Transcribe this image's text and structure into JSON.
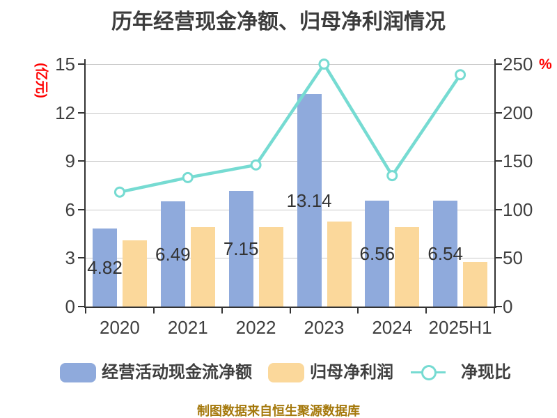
{
  "title": "历年经营现金净额、归母净利润情况",
  "footnote": "制图数据来自恒生聚源数据库",
  "axes": {
    "left": {
      "unit": "(亿元)",
      "ticks": [
        "15",
        "12",
        "9",
        "6",
        "3",
        "0"
      ]
    },
    "right": {
      "unit": "%",
      "ticks": [
        "250",
        "200",
        "150",
        "100",
        "50",
        "0"
      ]
    },
    "x": {
      "categories": [
        "2020",
        "2021",
        "2022",
        "2023",
        "2024",
        "2025H1"
      ]
    }
  },
  "legend": {
    "items": [
      {
        "label": "经营活动现金流净额",
        "type": "bar",
        "color": "#8faadc"
      },
      {
        "label": "归母净利润",
        "type": "bar",
        "color": "#fbd89b"
      },
      {
        "label": "净现比",
        "type": "line",
        "color": "#76dbd2"
      }
    ]
  },
  "colors": {
    "bar_cashflow": "#8faadc",
    "bar_netprofit": "#fbd89b",
    "line_ratio": "#76dbd2",
    "axis_text": "#3f3f3f",
    "red_accent": "#ff0000",
    "gridline": "#c8c8c8",
    "axis_line": "#333333",
    "bar_label": "#333333",
    "footnote_text": "#a5790c"
  },
  "chart_data": {
    "type": "combo-bar-line",
    "categories": [
      "2020",
      "2021",
      "2022",
      "2023",
      "2024",
      "2025H1"
    ],
    "series": [
      {
        "name": "经营活动现金流净额",
        "type": "bar",
        "axis": "left",
        "values": [
          4.82,
          6.49,
          7.15,
          13.14,
          6.56,
          6.54
        ],
        "labels": [
          "4.82",
          "6.49",
          "7.15",
          "13.14",
          "6.56",
          "6.54"
        ]
      },
      {
        "name": "归母净利润",
        "type": "bar",
        "axis": "left",
        "values": [
          4.1,
          4.9,
          4.9,
          5.26,
          4.9,
          2.75
        ]
      },
      {
        "name": "净现比",
        "type": "line",
        "axis": "right",
        "values": [
          118,
          133,
          146,
          250,
          135,
          239
        ]
      }
    ],
    "left_ylabel": "(亿元)",
    "right_ylabel": "%",
    "left_ylim": [
      0,
      15
    ],
    "right_ylim": [
      0,
      250
    ],
    "grid": true,
    "legend_position": "bottom"
  }
}
